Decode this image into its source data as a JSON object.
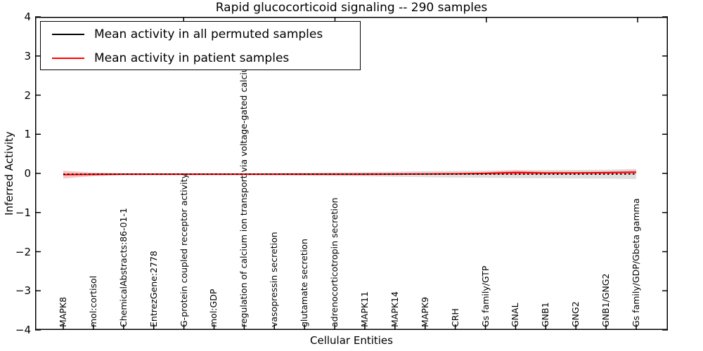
{
  "chart_data": {
    "type": "line",
    "title": "Rapid glucocorticoid signaling -- 290 samples",
    "xlabel": "Cellular Entities",
    "ylabel": "Inferred Activity",
    "ylim": [
      -4,
      4
    ],
    "yticks": [
      4,
      3,
      2,
      1,
      0,
      -1,
      -2,
      -3,
      -4
    ],
    "ytick_labels": [
      "4",
      "3",
      "2",
      "1",
      "0",
      "−1",
      "−2",
      "−3",
      "−4"
    ],
    "grid": false,
    "legend_position": "upper left",
    "categories": [
      "MAPK8",
      "mol:cortisol",
      "ChemicalAbstracts:86-01-1",
      "EntrezGene:2778",
      "G-protein coupled receptor activity",
      "mol:GDP",
      "regulation of calcium ion transport via voltage-gated calcium channel",
      "vasopressin secretion",
      "glutamate secretion",
      "adrenocorticotropin secretion",
      "MAPK11",
      "MAPK14",
      "MAPK9",
      "CRH",
      "Gs family/GTP",
      "GNAL",
      "GNB1",
      "GNG2",
      "GNB1/GNG2",
      "Gs family/GDP/Gbeta gamma"
    ],
    "series": [
      {
        "name": "Mean activity in all permuted samples",
        "color": "#000000",
        "line_style": "solid (appears dashed where overlaid by red line)",
        "values": [
          -0.02,
          -0.02,
          -0.02,
          -0.02,
          -0.02,
          -0.02,
          -0.02,
          -0.02,
          -0.02,
          -0.02,
          -0.02,
          -0.02,
          -0.02,
          -0.02,
          -0.02,
          -0.02,
          -0.02,
          -0.02,
          -0.02,
          -0.015
        ],
        "band_halfwidth": [
          0.01,
          0.01,
          0.01,
          0.01,
          0.012,
          0.015,
          0.018,
          0.025,
          0.035,
          0.045,
          0.055,
          0.065,
          0.075,
          0.085,
          0.09,
          0.1,
          0.105,
          0.11,
          0.115,
          0.13
        ],
        "band_color": "#c8c8c8"
      },
      {
        "name": "Mean activity in patient samples",
        "color": "#ff0000",
        "line_style": "solid",
        "values": [
          -0.03,
          -0.025,
          -0.02,
          -0.02,
          -0.02,
          -0.02,
          -0.02,
          -0.02,
          -0.02,
          -0.02,
          -0.02,
          -0.018,
          -0.015,
          -0.01,
          0.0,
          0.02,
          0.01,
          0.012,
          0.018,
          0.03
        ],
        "band_halfwidth": [
          0.1,
          0.045,
          0.02,
          0.015,
          0.015,
          0.015,
          0.015,
          0.015,
          0.015,
          0.015,
          0.015,
          0.015,
          0.015,
          0.02,
          0.03,
          0.06,
          0.03,
          0.025,
          0.03,
          0.05
        ],
        "band_color": "#f2a2a2"
      }
    ]
  }
}
